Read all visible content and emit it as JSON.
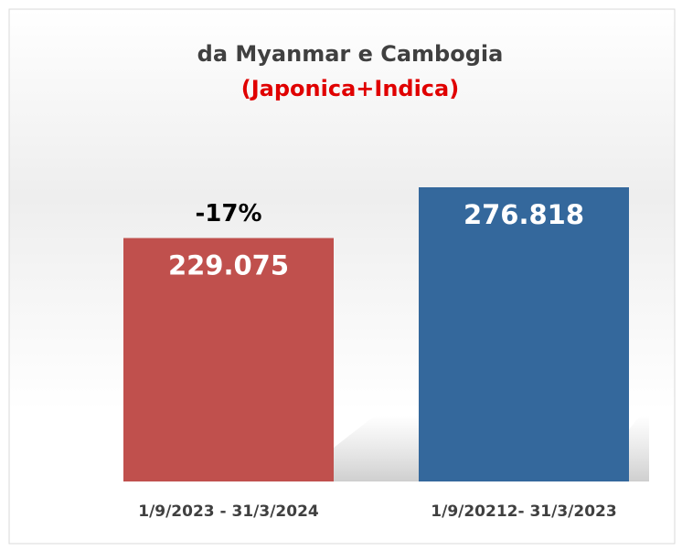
{
  "chart_data": {
    "type": "bar",
    "title": "da Myanmar e Cambogia",
    "subtitle": "(Japonica+Indica)",
    "categories": [
      "1/9/2023 - 31/3/2024",
      "1/9/20212- 31/3/2023"
    ],
    "values": [
      229.075,
      276.818
    ],
    "colors": [
      "#c0504d",
      "#34689c"
    ],
    "annotations": [
      "-17%"
    ]
  }
}
